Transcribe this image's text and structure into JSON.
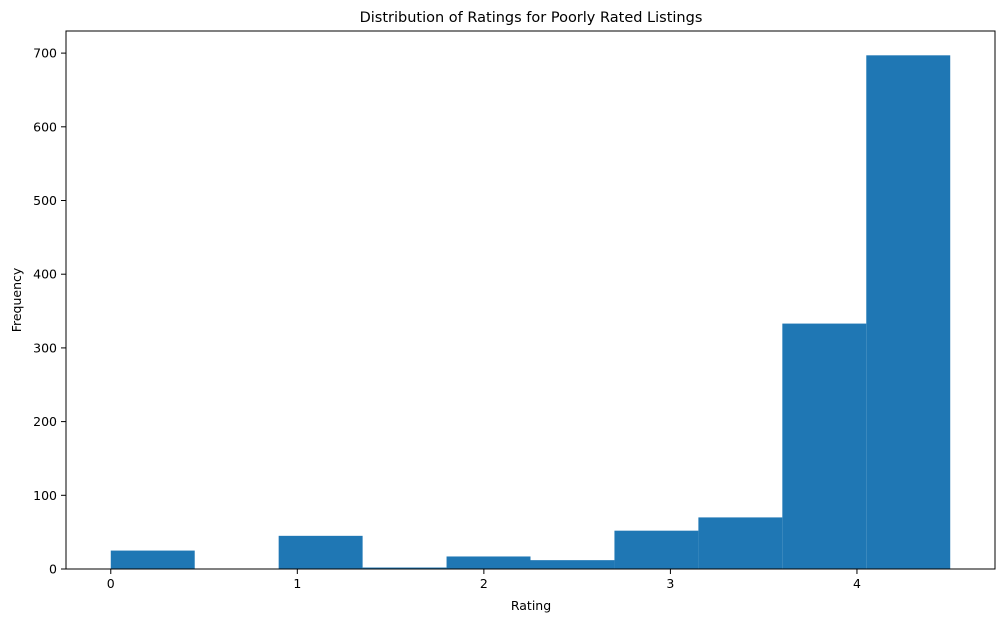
{
  "chart_data": {
    "type": "bar",
    "subtype": "histogram",
    "title": "Distribution of Ratings for Poorly Rated Listings",
    "xlabel": "Rating",
    "ylabel": "Frequency",
    "xlim": [
      -0.24,
      4.74
    ],
    "ylim": [
      0,
      730
    ],
    "xticks": [
      0,
      1,
      2,
      3,
      4
    ],
    "yticks": [
      0,
      100,
      200,
      300,
      400,
      500,
      600,
      700
    ],
    "bins": [
      {
        "x0": 0.0,
        "x1": 0.45,
        "count": 25
      },
      {
        "x0": 0.45,
        "x1": 0.9,
        "count": 0
      },
      {
        "x0": 0.9,
        "x1": 1.35,
        "count": 45
      },
      {
        "x0": 1.35,
        "x1": 1.8,
        "count": 2
      },
      {
        "x0": 1.8,
        "x1": 2.25,
        "count": 17
      },
      {
        "x0": 2.25,
        "x1": 2.7,
        "count": 12
      },
      {
        "x0": 2.7,
        "x1": 3.15,
        "count": 52
      },
      {
        "x0": 3.15,
        "x1": 3.6,
        "count": 70
      },
      {
        "x0": 3.6,
        "x1": 4.05,
        "count": 333
      },
      {
        "x0": 4.05,
        "x1": 4.5,
        "count": 697
      }
    ],
    "bar_color": "#1f77b4",
    "grid": false,
    "legend": "none"
  }
}
